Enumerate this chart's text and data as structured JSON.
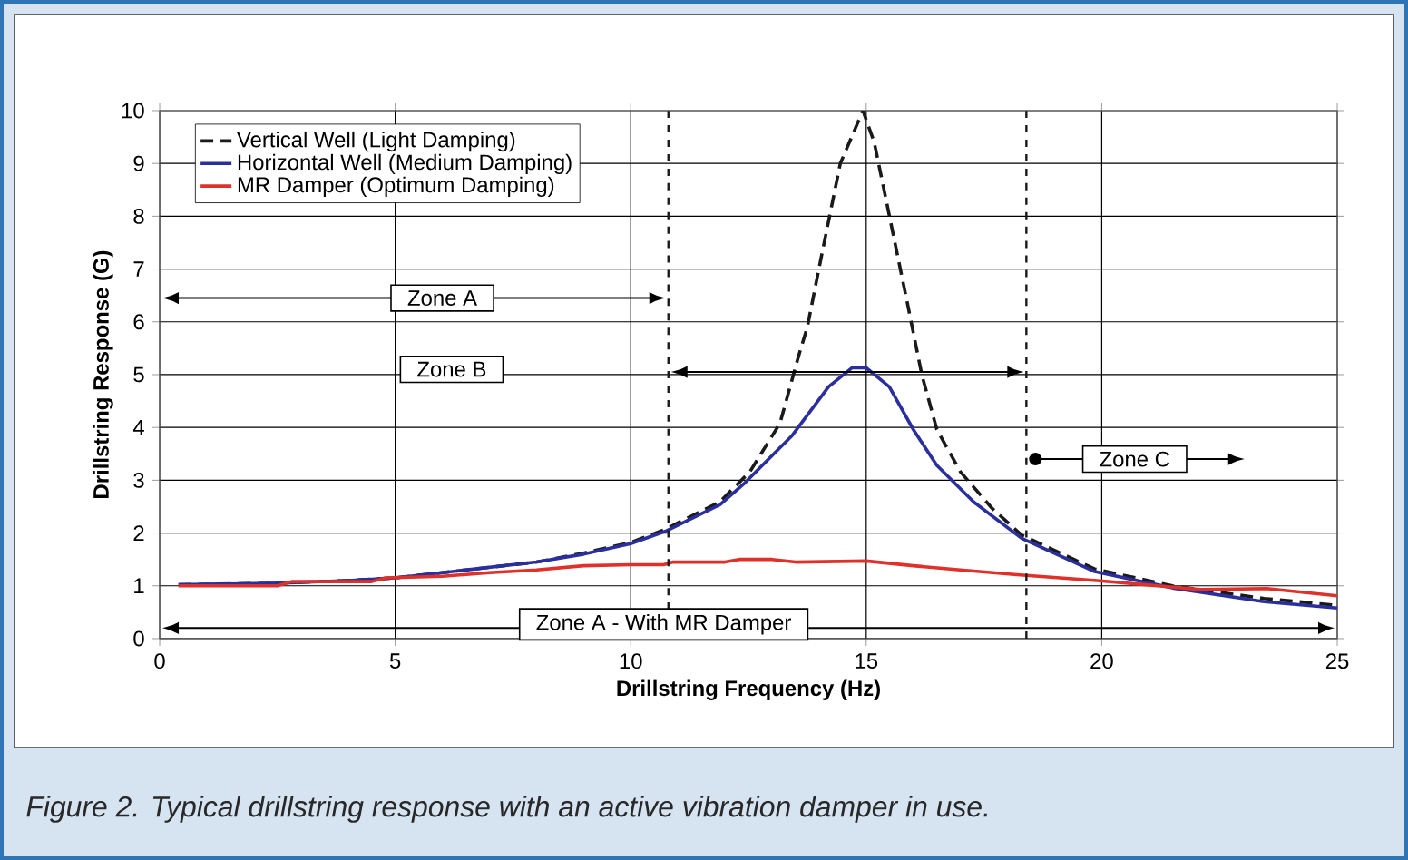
{
  "chart_data": {
    "type": "line",
    "xlabel": "Drillstring Frequency (Hz)",
    "ylabel": "Drillstring Response (G)",
    "xlim": [
      0,
      25
    ],
    "ylim": [
      0,
      10
    ],
    "xticks": [
      0,
      5,
      10,
      15,
      20,
      25
    ],
    "yticks": [
      0,
      1,
      2,
      3,
      4,
      5,
      6,
      7,
      8,
      9,
      10
    ],
    "grid": true,
    "legend": "top left",
    "series": [
      {
        "name": "Vertical Well (Light Damping)",
        "color": "#1a1a1a",
        "line_style": "dashed",
        "x": [
          0.4,
          2.5,
          4,
          5,
          6,
          7,
          8,
          9,
          10,
          10.73,
          11.89,
          12.53,
          13.17,
          13.56,
          13.75,
          14.06,
          14.45,
          14.93,
          15.17,
          15.5,
          15.87,
          16.18,
          16.5,
          17.0,
          17.67,
          18.3,
          19.85,
          21.5,
          23.45,
          25
        ],
        "values": [
          1.02,
          1.05,
          1.1,
          1.15,
          1.25,
          1.35,
          1.45,
          1.62,
          1.82,
          2.07,
          2.59,
          3.16,
          4.08,
          5.34,
          5.9,
          7.29,
          9.0,
          10.0,
          9.4,
          7.97,
          6.37,
          5.0,
          3.96,
          3.16,
          2.47,
          1.96,
          1.32,
          1.0,
          0.76,
          0.63
        ]
      },
      {
        "name": "Horizontal Well (Medium Damping)",
        "color": "#2b2f9e",
        "line_style": "solid",
        "x": [
          0.4,
          2.5,
          4,
          5,
          6,
          7,
          8,
          9,
          10,
          10.73,
          11.9,
          12.4,
          13.43,
          14.2,
          14.7,
          15.0,
          15.49,
          16.0,
          16.5,
          17.28,
          18.3,
          19.85,
          21.5,
          23.45,
          25
        ],
        "values": [
          1.02,
          1.05,
          1.1,
          1.15,
          1.25,
          1.35,
          1.45,
          1.6,
          1.8,
          2.03,
          2.54,
          2.93,
          3.85,
          4.77,
          5.13,
          5.13,
          4.77,
          3.96,
          3.28,
          2.59,
          1.9,
          1.27,
          0.96,
          0.7,
          0.58
        ]
      },
      {
        "name": "MR Damper (Optimum Damping)",
        "color": "#e0302a",
        "line_style": "solid",
        "x": [
          0.4,
          2.5,
          2.8,
          4.5,
          4.8,
          6,
          7,
          8,
          9,
          10,
          10.7,
          10.9,
          12,
          12.3,
          13,
          13.5,
          15,
          16,
          17,
          18.2,
          19.9,
          22.1,
          23.5,
          25
        ],
        "values": [
          1.0,
          1.0,
          1.08,
          1.08,
          1.15,
          1.18,
          1.25,
          1.3,
          1.38,
          1.4,
          1.4,
          1.45,
          1.45,
          1.5,
          1.5,
          1.45,
          1.47,
          1.38,
          1.3,
          1.21,
          1.1,
          0.93,
          0.95,
          0.81
        ]
      }
    ],
    "ref_lines": [
      {
        "axis": "x",
        "value": 10.8,
        "color": "#1a1a1a",
        "line_style": "dashed"
      },
      {
        "axis": "x",
        "value": 18.4,
        "color": "#1a1a1a",
        "line_style": "dashed"
      }
    ],
    "annotations": [
      "Zone A",
      "Zone B",
      "Zone C",
      "Zone A - With MR Damper",
      "Figure 2. Typical drillstring response with an active vibration damper in use."
    ]
  }
}
